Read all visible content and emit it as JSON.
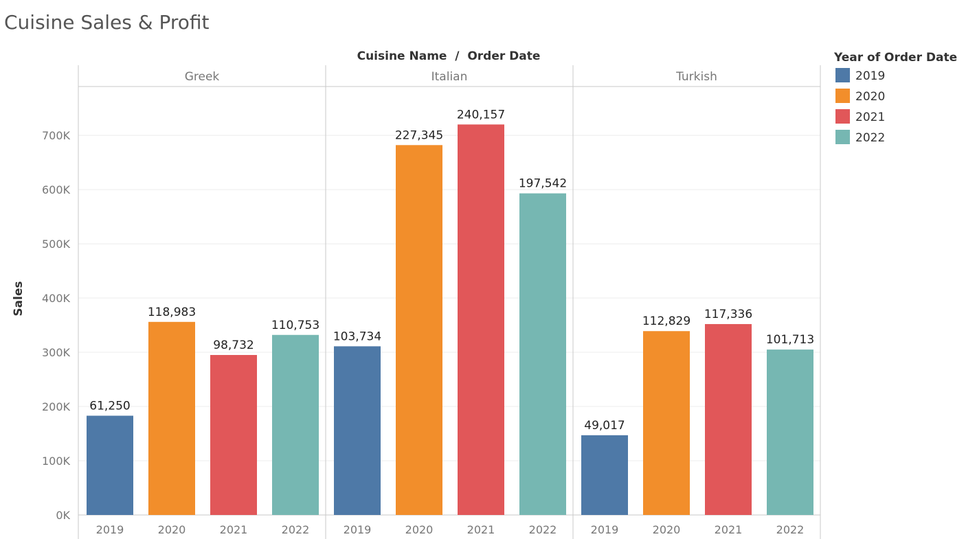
{
  "title": "Cuisine Sales & Profit",
  "chart_data": {
    "type": "bar",
    "title": "Cuisine Sales & Profit",
    "column_header": "Cuisine Name  /  Order Date",
    "ylabel": "Sales",
    "xlabel": "",
    "ylim": [
      0,
      790000
    ],
    "yticks": [
      0,
      100000,
      200000,
      300000,
      400000,
      500000,
      600000,
      700000
    ],
    "ytick_labels": [
      "0K",
      "100K",
      "200K",
      "300K",
      "400K",
      "500K",
      "600K",
      "700K"
    ],
    "grid": true,
    "legend_title": "Year of Order Date",
    "legend_position": "right",
    "panels": [
      "Greek",
      "Italian",
      "Turkish"
    ],
    "categories": [
      "2019",
      "2020",
      "2021",
      "2022"
    ],
    "colors": {
      "2019": "#4e79a7",
      "2020": "#f28e2b",
      "2021": "#e15759",
      "2022": "#76b7b2"
    },
    "bars": [
      {
        "panel": "Greek",
        "year": "2019",
        "value": 183000,
        "label": "61,250"
      },
      {
        "panel": "Greek",
        "year": "2020",
        "value": 356000,
        "label": "118,983"
      },
      {
        "panel": "Greek",
        "year": "2021",
        "value": 295000,
        "label": "98,732"
      },
      {
        "panel": "Greek",
        "year": "2022",
        "value": 332000,
        "label": "110,753"
      },
      {
        "panel": "Italian",
        "year": "2019",
        "value": 311000,
        "label": "103,734"
      },
      {
        "panel": "Italian",
        "year": "2020",
        "value": 682000,
        "label": "227,345"
      },
      {
        "panel": "Italian",
        "year": "2021",
        "value": 720000,
        "label": "240,157"
      },
      {
        "panel": "Italian",
        "year": "2022",
        "value": 593000,
        "label": "197,542"
      },
      {
        "panel": "Turkish",
        "year": "2019",
        "value": 147000,
        "label": "49,017"
      },
      {
        "panel": "Turkish",
        "year": "2020",
        "value": 339000,
        "label": "112,829"
      },
      {
        "panel": "Turkish",
        "year": "2021",
        "value": 352000,
        "label": "117,336"
      },
      {
        "panel": "Turkish",
        "year": "2022",
        "value": 305000,
        "label": "101,713"
      }
    ]
  }
}
